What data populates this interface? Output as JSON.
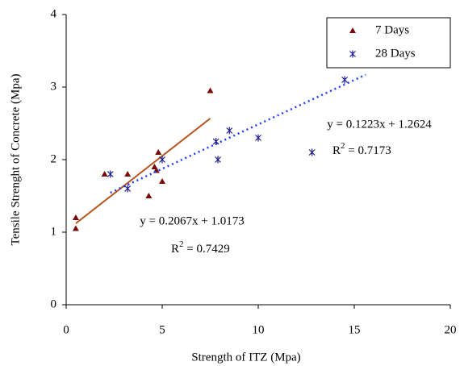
{
  "chart_data": {
    "type": "scatter",
    "x_label": "Strength of ITZ (Mpa)",
    "y_label": "Tensile Strenght of Concrete (Mpa)",
    "xlim": [
      0,
      20
    ],
    "xticks": [
      0,
      5,
      10,
      15,
      20
    ],
    "ylim": [
      0,
      4
    ],
    "yticks": [
      0,
      1,
      2,
      3,
      4
    ],
    "legend_position": "top-right",
    "series": [
      {
        "name": "7 Days",
        "marker": "triangle",
        "color": "#7a0a0a",
        "x": [
          0.5,
          0.5,
          2,
          3.2,
          4.3,
          4.6,
          4.7,
          4.8,
          5,
          7.5
        ],
        "values": [
          1.05,
          1.2,
          1.8,
          1.8,
          1.5,
          1.9,
          1.85,
          2.1,
          1.7,
          2.95
        ],
        "trendline": {
          "slope": 0.2067,
          "intercept": 1.0173,
          "xrange": [
            0.5,
            7.5
          ],
          "color": "#b5541b",
          "dash": false,
          "equation": "y = 0.2067x + 1.0173",
          "r2_symbol": "R",
          "r2_power": "2",
          "r2_text": " = 0.7429"
        }
      },
      {
        "name": "28 Days",
        "marker": "asterisk",
        "color": "#1a1a8c",
        "x": [
          2.3,
          3.2,
          5,
          7.8,
          7.9,
          8.5,
          10,
          12.8,
          14.5
        ],
        "values": [
          1.8,
          1.6,
          2.0,
          2.25,
          2.0,
          2.4,
          2.3,
          2.1,
          3.1
        ],
        "trendline": {
          "slope": 0.1223,
          "intercept": 1.2624,
          "xrange": [
            2.3,
            15.6
          ],
          "color": "#1e3cff",
          "dash": true,
          "equation": "y = 0.1223x + 1.2624",
          "r2_symbol": "R",
          "r2_power": "2",
          "r2_text": " = 0.7173"
        }
      }
    ]
  }
}
